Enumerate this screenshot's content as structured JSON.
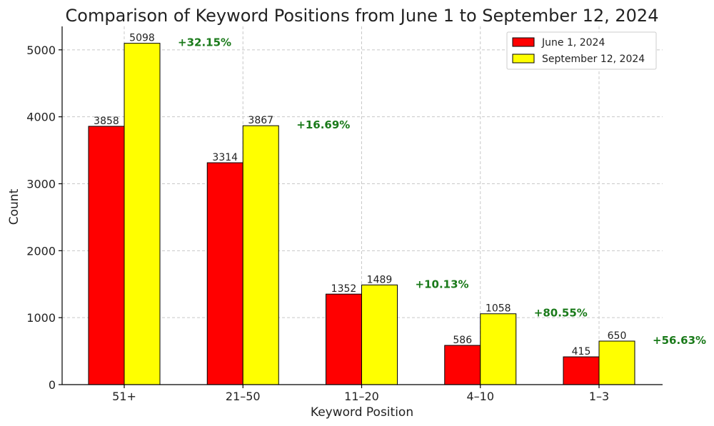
{
  "chart_data": {
    "type": "bar",
    "title": "Comparison of Keyword Positions from June 1 to September 12, 2024",
    "xlabel": "Keyword Position",
    "ylabel": "Count",
    "categories": [
      "51+",
      "21–50",
      "11–20",
      "4–10",
      "1–3"
    ],
    "series": [
      {
        "name": "June 1, 2024",
        "color": "#ff0000",
        "values": [
          3858,
          3314,
          1352,
          586,
          415
        ]
      },
      {
        "name": "September 12, 2024",
        "color": "#ffff00",
        "values": [
          5098,
          3867,
          1489,
          1058,
          650
        ]
      }
    ],
    "annotations": [
      "+32.15%",
      "+16.69%",
      "+10.13%",
      "+80.55%",
      "+56.63%"
    ],
    "annotation_color": "#1a7a1a",
    "yticks": [
      0,
      1000,
      2000,
      3000,
      4000,
      5000
    ],
    "ylim": [
      0,
      5350
    ],
    "grid": true,
    "legend_position": "top-right"
  }
}
